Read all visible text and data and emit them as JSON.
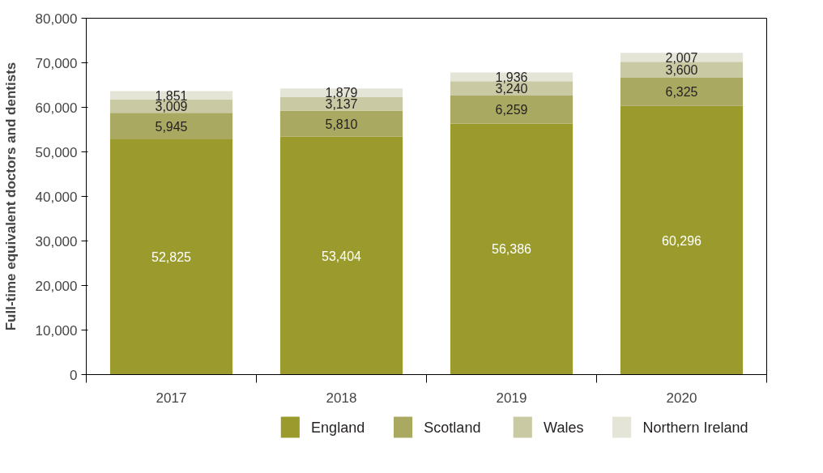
{
  "chart_data": {
    "type": "bar",
    "stacked": true,
    "ylabel": "Full-time equivalent doctors and dentists",
    "categories": [
      "2017",
      "2018",
      "2019",
      "2020"
    ],
    "series": [
      {
        "name": "England",
        "color": "#9a9b2c",
        "values": [
          52825,
          53404,
          56386,
          60296
        ],
        "value_labels": [
          "52,825",
          "53,404",
          "56,386",
          "60,296"
        ]
      },
      {
        "name": "Scotland",
        "color": "#aaa962",
        "values": [
          5945,
          5810,
          6259,
          6325
        ],
        "value_labels": [
          "5,945",
          "5,810",
          "6,259",
          "6,325"
        ]
      },
      {
        "name": "Wales",
        "color": "#c9c9a3",
        "values": [
          3009,
          3137,
          3240,
          3600
        ],
        "value_labels": [
          "3,009",
          "3,137",
          "3,240",
          "3,600"
        ]
      },
      {
        "name": "Northern Ireland",
        "color": "#e5e5d7",
        "values": [
          1851,
          1879,
          1936,
          2007
        ],
        "value_labels": [
          "1,851",
          "1,879",
          "1,936",
          "2,007"
        ]
      }
    ],
    "ylim": [
      0,
      80000
    ],
    "yticks": [
      {
        "value": 0,
        "label": "0"
      },
      {
        "value": 10000,
        "label": "10,000"
      },
      {
        "value": 20000,
        "label": "20,000"
      },
      {
        "value": 30000,
        "label": "30,000"
      },
      {
        "value": 40000,
        "label": "40,000"
      },
      {
        "value": 50000,
        "label": "50,000"
      },
      {
        "value": 60000,
        "label": "60,000"
      },
      {
        "value": 70000,
        "label": "70,000"
      },
      {
        "value": 80000,
        "label": "80,000"
      }
    ],
    "grid": false,
    "legend": "bottom"
  }
}
